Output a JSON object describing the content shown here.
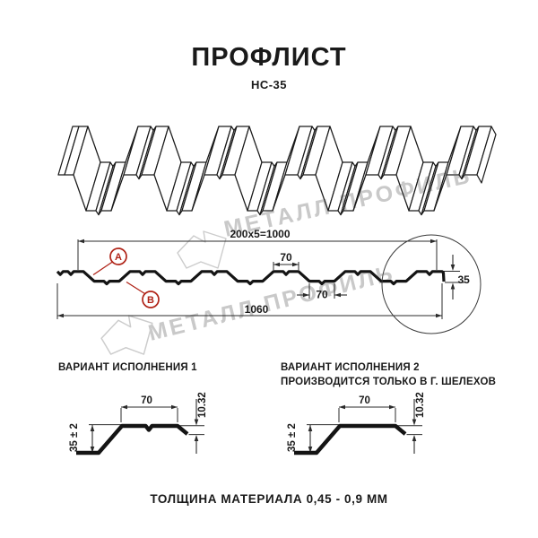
{
  "title": "ПРОФЛИСТ",
  "subtitle": "НС-35",
  "watermark": {
    "text": "МЕТАЛЛ ПРОФИЛЬ"
  },
  "section": {
    "dim_total_pitch": "200x5=1000",
    "dim_top_flange": "70",
    "dim_bottom_flange": "70",
    "dim_overall": "1060",
    "dim_height": "35",
    "label_a": "A",
    "label_b": "B"
  },
  "variant1": {
    "heading": "ВАРИАНТ ИСПОЛНЕНИЯ 1",
    "dim_flange": "70",
    "dim_lip": "10.32",
    "dim_height": "35 ± 2"
  },
  "variant2": {
    "heading_line1": "ВАРИАНТ ИСПОЛНЕНИЯ 2",
    "heading_line2": "ПРОИЗВОДИТСЯ ТОЛЬКО В Г. ШЕЛЕХОВ",
    "dim_flange": "70",
    "dim_lip": "10.32",
    "dim_height": "35 ± 2"
  },
  "footer": "ТОЛЩИНА МАТЕРИАЛА 0,45 - 0,9 ММ",
  "colors": {
    "ink": "#1a1a1a",
    "accent_red": "#b02418",
    "watermark_gray": "#c9c9c9"
  }
}
